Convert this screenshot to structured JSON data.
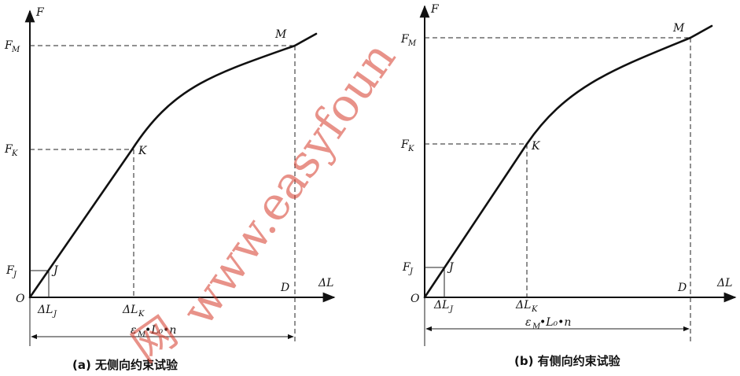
{
  "watermark": {
    "text": "www.easyfoun",
    "chinese": "网"
  },
  "panel_a": {
    "axis_y": "F",
    "axis_x": "ΔL",
    "origin": "O",
    "point_j": "J",
    "point_k": "K",
    "point_m": "M",
    "point_d": "D",
    "f_m": "F",
    "f_m_sub": "M",
    "f_k": "F",
    "f_k_sub": "K",
    "f_j": "F",
    "f_j_sub": "J",
    "dl_j": "ΔL",
    "dl_j_sub": "J",
    "dl_k": "ΔL",
    "dl_k_sub": "K",
    "span": "ε",
    "span_sub": "M",
    "span_rest": "•L₀•n",
    "caption": "(a) 无侧向约束试验"
  },
  "panel_b": {
    "axis_y": "F",
    "axis_x": "ΔL",
    "origin": "O",
    "point_j": "J",
    "point_k": "K",
    "point_m": "M",
    "point_d": "D",
    "f_m": "F",
    "f_m_sub": "M",
    "f_k": "F",
    "f_k_sub": "K",
    "f_j": "F",
    "f_j_sub": "J",
    "dl_j": "ΔL",
    "dl_j_sub": "J",
    "dl_k": "ΔL",
    "dl_k_sub": "K",
    "span": "ε",
    "span_sub": "M",
    "span_rest": "•L₀•n",
    "caption": "(b) 有侧向约束试验"
  }
}
